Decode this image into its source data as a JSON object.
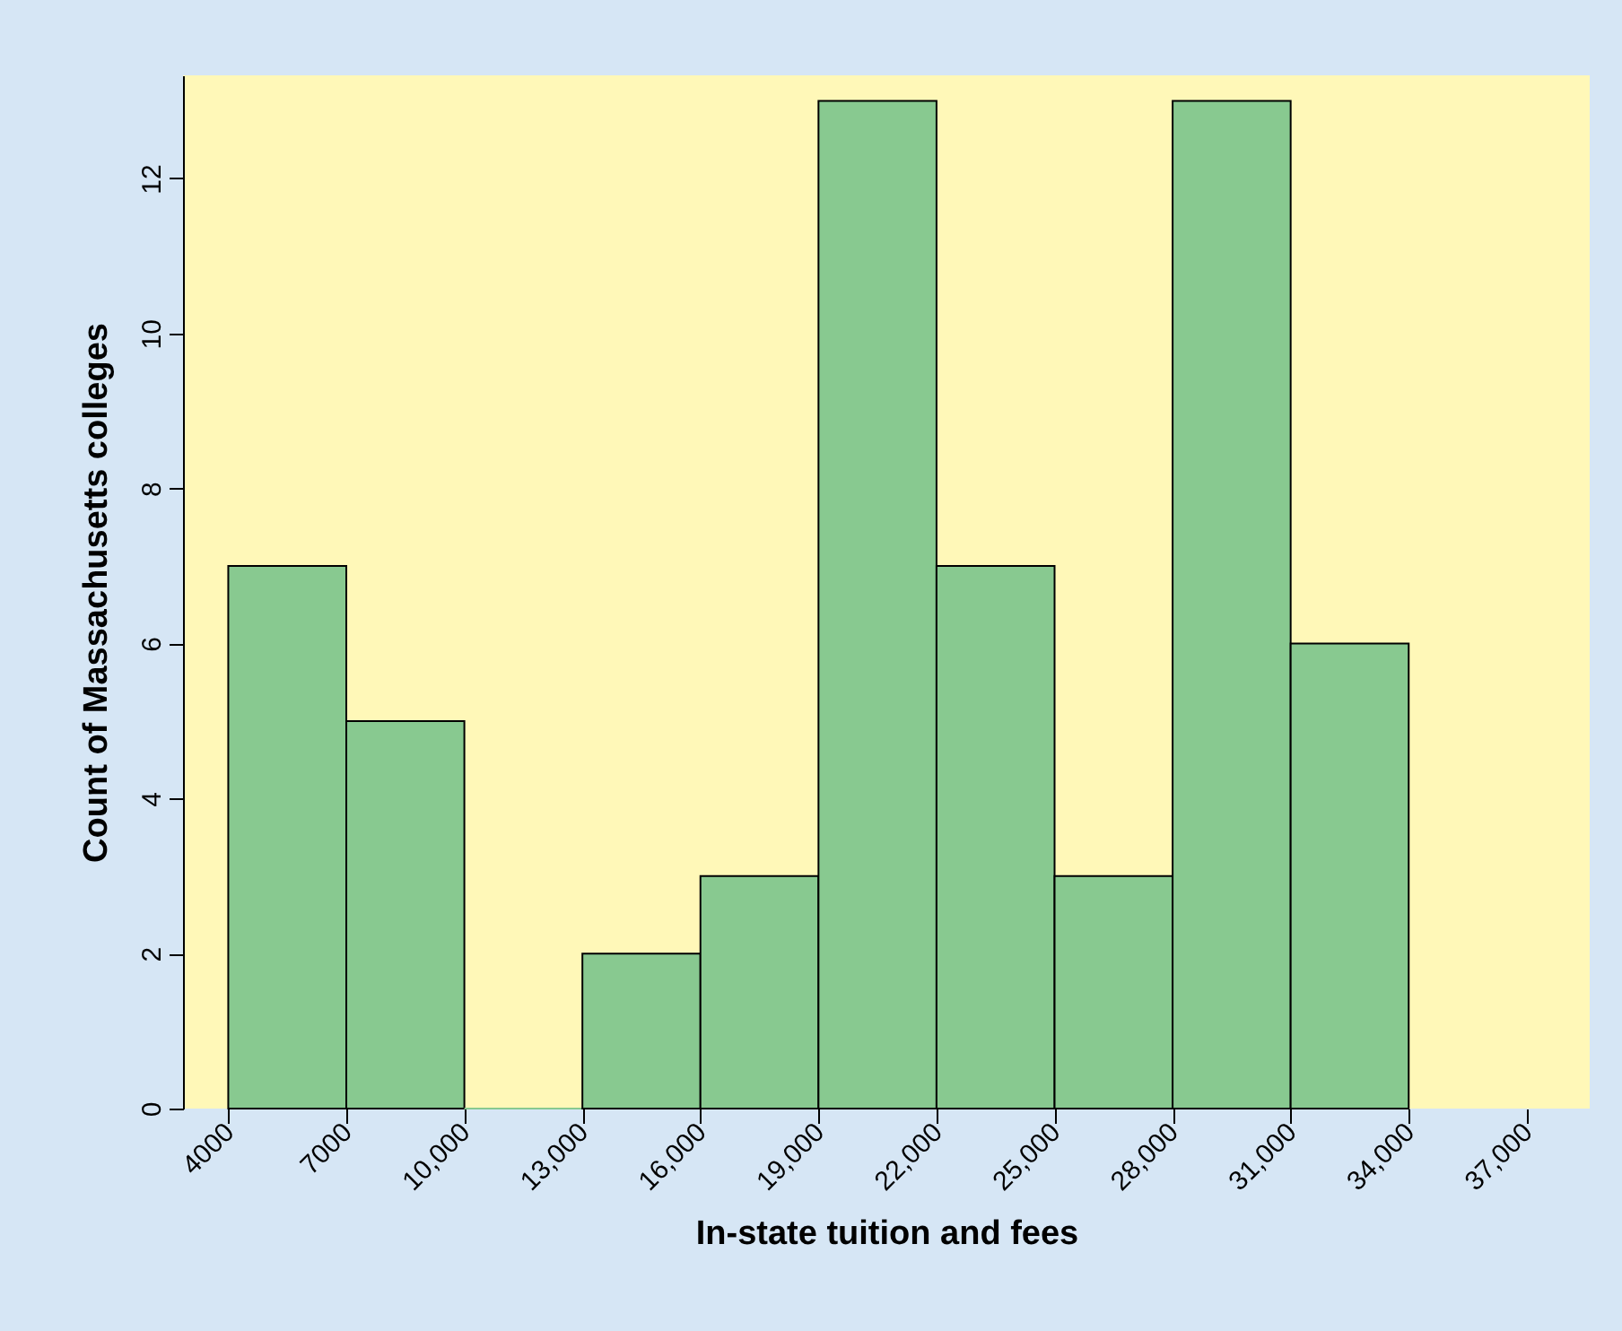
{
  "chart_data": {
    "type": "histogram",
    "xlabel": "In-state tuition and fees",
    "ylabel": "Count of Massachusetts colleges",
    "bins": [
      4000,
      7000,
      10000,
      13000,
      16000,
      19000,
      22000,
      25000,
      28000,
      31000,
      34000
    ],
    "values": [
      7,
      5,
      0,
      2,
      3,
      13,
      7,
      3,
      13,
      6
    ],
    "color": "#88c990",
    "xlim": [
      2850,
      38600
    ],
    "ylim": [
      0,
      13.33
    ],
    "xticks": [
      4000,
      7000,
      {
        "value": 10000,
        "label": "10,000"
      },
      {
        "value": 13000,
        "label": "13,000"
      },
      {
        "value": 16000,
        "label": "16,000"
      },
      {
        "value": 19000,
        "label": "19,000"
      },
      {
        "value": 22000,
        "label": "22,000"
      },
      {
        "value": 25000,
        "label": "25,000"
      },
      {
        "value": 28000,
        "label": "28,000"
      },
      {
        "value": 31000,
        "label": "31,000"
      },
      {
        "value": 34000,
        "label": "34,000"
      },
      {
        "value": 37000,
        "label": "37,000"
      }
    ],
    "yticks": [
      0,
      2,
      4,
      6,
      8,
      10,
      12
    ],
    "grid": false
  }
}
